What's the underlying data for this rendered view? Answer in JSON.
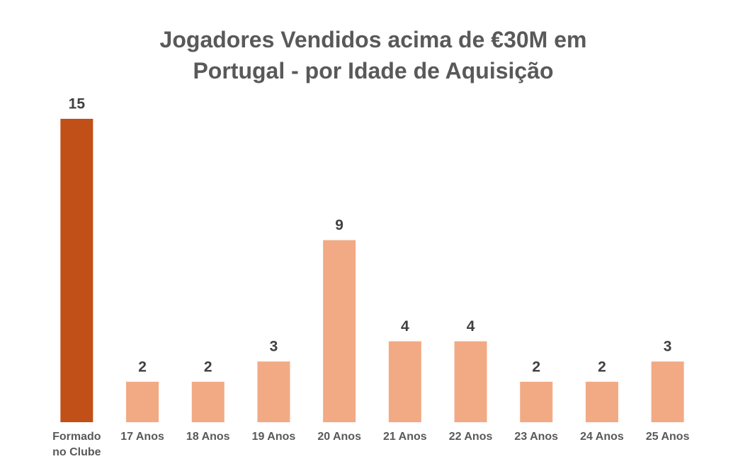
{
  "chart_data": {
    "type": "bar",
    "title": "Jogadores Vendidos acima de €30M em Portugal - por Idade de Aquisição",
    "categories": [
      "Formado no Clube",
      "17 Anos",
      "18 Anos",
      "19 Anos",
      "20 Anos",
      "21 Anos",
      "22 Anos",
      "23 Anos",
      "24 Anos",
      "25 Anos"
    ],
    "values": [
      15,
      2,
      2,
      3,
      9,
      4,
      4,
      2,
      2,
      3
    ],
    "colors": [
      "#c05017",
      "#f2aa84",
      "#f2aa84",
      "#f2aa84",
      "#f2aa84",
      "#f2aa84",
      "#f2aa84",
      "#f2aa84",
      "#f2aa84",
      "#f2aa84"
    ]
  }
}
